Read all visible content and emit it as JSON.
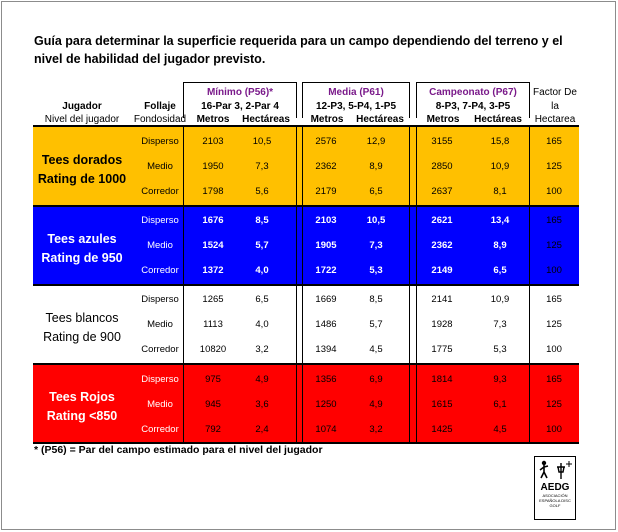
{
  "title": "Guía para determinar la superficie requerida para un campo dependiendo del terreno y el nivel de habilidad del jugador previsto.",
  "headers": {
    "jugador": "Jugador",
    "nivel": "Nivel del jugador",
    "follaje": "Follaje",
    "fondosidad": "Fondosidad",
    "minimo": "Mínimo (P56)*",
    "minimo_sub": "16-Par 3, 2-Par 4",
    "media": "Media (P61)",
    "media_sub": "12-P3, 5-P4, 1-P5",
    "campeonato": "Campeonato (P67)",
    "campeonato_sub": "8-P3, 7-P4, 3-P5",
    "metros": "Metros",
    "hectareas": "Hectáreas",
    "factor1": "Factor De",
    "factor2": "la",
    "factor3": "Hectarea"
  },
  "groups": [
    {
      "label1": "Tees dorados",
      "label2": "Rating de 1000",
      "color": "#ffc000",
      "rows": [
        {
          "cond": "Disperso",
          "m1": "2103",
          "h1": "10,5",
          "m2": "2576",
          "h2": "12,9",
          "m3": "3155",
          "h3": "15,8",
          "f": "165"
        },
        {
          "cond": "Medio",
          "m1": "1950",
          "h1": "7,3",
          "m2": "2362",
          "h2": "8,9",
          "m3": "2850",
          "h3": "10,9",
          "f": "125"
        },
        {
          "cond": "Corredor",
          "m1": "1798",
          "h1": "5,6",
          "m2": "2179",
          "h2": "6,5",
          "m3": "2637",
          "h3": "8,1",
          "f": "100"
        }
      ]
    },
    {
      "label1": "Tees azules",
      "label2": "Rating de 950",
      "color": "#0000ff",
      "rows": [
        {
          "cond": "Disperso",
          "m1": "1676",
          "h1": "8,5",
          "m2": "2103",
          "h2": "10,5",
          "m3": "2621",
          "h3": "13,4",
          "f": "165"
        },
        {
          "cond": "Medio",
          "m1": "1524",
          "h1": "5,7",
          "m2": "1905",
          "h2": "7,3",
          "m3": "2362",
          "h3": "8,9",
          "f": "125"
        },
        {
          "cond": "Corredor",
          "m1": "1372",
          "h1": "4,0",
          "m2": "1722",
          "h2": "5,3",
          "m3": "2149",
          "h3": "6,5",
          "f": "100"
        }
      ]
    },
    {
      "label1": "Tees blancos",
      "label2": "Rating de 900",
      "color": "#ffffff",
      "rows": [
        {
          "cond": "Disperso",
          "m1": "1265",
          "h1": "6,5",
          "m2": "1669",
          "h2": "8,5",
          "m3": "2141",
          "h3": "10,9",
          "f": "165"
        },
        {
          "cond": "Medio",
          "m1": "1113",
          "h1": "4,0",
          "m2": "1486",
          "h2": "5,7",
          "m3": "1928",
          "h3": "7,3",
          "f": "125"
        },
        {
          "cond": "Corredor",
          "m1": "10820",
          "h1": "3,2",
          "m2": "1394",
          "h2": "4,5",
          "m3": "1775",
          "h3": "5,3",
          "f": "100"
        }
      ]
    },
    {
      "label1": "Tees Rojos",
      "label2": "Rating <850",
      "color": "#ff0000",
      "rows": [
        {
          "cond": "Disperso",
          "m1": "975",
          "h1": "4,9",
          "m2": "1356",
          "h2": "6,9",
          "m3": "1814",
          "h3": "9,3",
          "f": "165"
        },
        {
          "cond": "Medio",
          "m1": "945",
          "h1": "3,6",
          "m2": "1250",
          "h2": "4,9",
          "m3": "1615",
          "h3": "6,1",
          "f": "125"
        },
        {
          "cond": "Corredor",
          "m1": "792",
          "h1": "2,4",
          "m2": "1074",
          "h2": "3,2",
          "m3": "1425",
          "h3": "4,5",
          "f": "100"
        }
      ]
    }
  ],
  "footnote": "* (P56) = Par del campo estimado para el nivel del jugador",
  "logo": {
    "name": "AEDG",
    "sub": "ASOCIACIÓN ESPAÑOLA DISC GOLF"
  }
}
